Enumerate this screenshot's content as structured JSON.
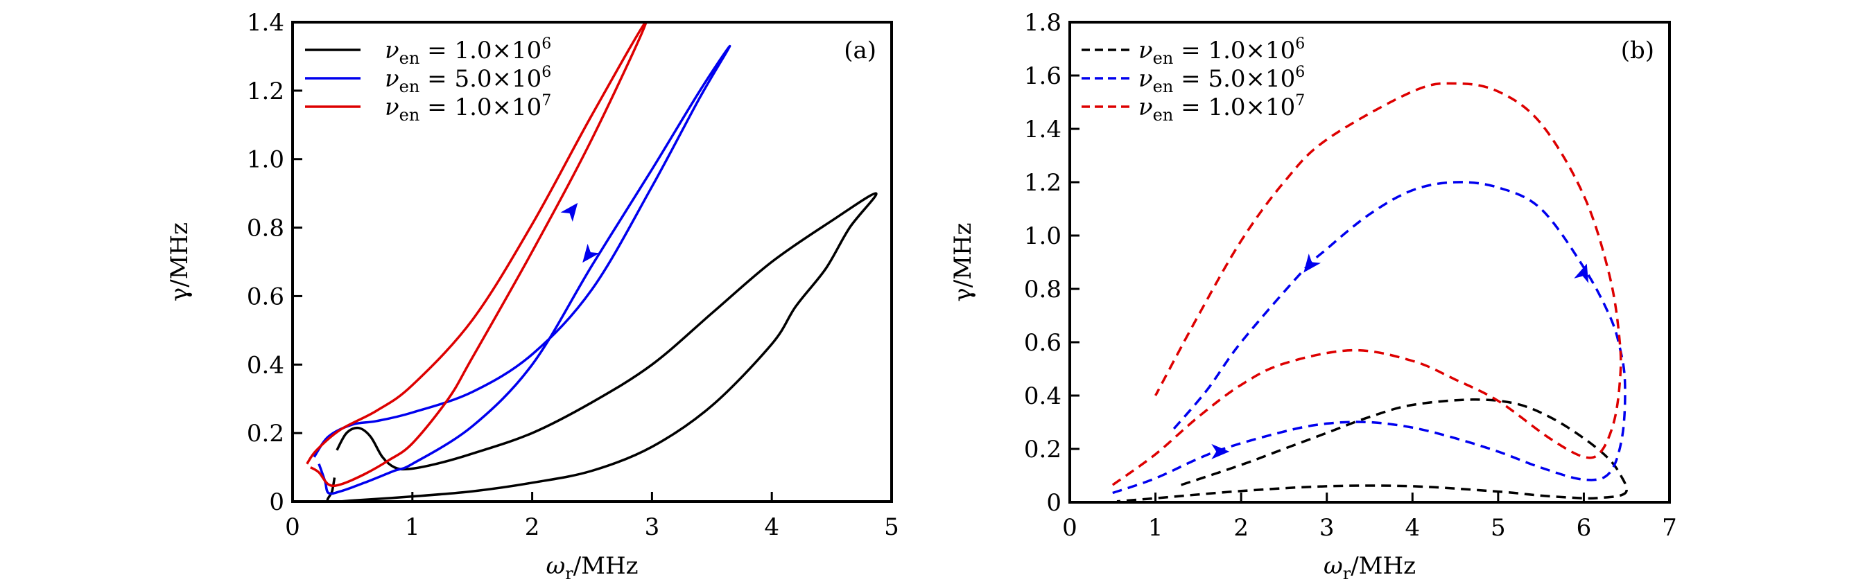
{
  "chart_data": [
    {
      "type": "line",
      "panel_label": "(a)",
      "xlabel": "ωr/MHz",
      "xlabel_main": "ω",
      "xlabel_sub": "r",
      "xlabel_unit": "/MHz",
      "ylabel": "γ/MHz",
      "xlim": [
        0,
        5
      ],
      "ylim": [
        0,
        1.4
      ],
      "xticks": [
        0,
        1,
        2,
        3,
        4,
        5
      ],
      "xtick_labels": [
        "0",
        "1",
        "2",
        "3",
        "4",
        "5"
      ],
      "yticks": [
        0,
        0.2,
        0.4,
        0.6,
        0.8,
        1.0,
        1.2,
        1.4
      ],
      "ytick_labels": [
        "0",
        "0.2",
        "0.4",
        "0.6",
        "0.8",
        "1.0",
        "1.2",
        "1.4"
      ],
      "grid": false,
      "legend_position": "top-left",
      "line_style": "solid",
      "series": [
        {
          "name": "νen = 1.0×10^6",
          "legend_prefix": "ν",
          "legend_sub": "en",
          "legend_mid": " = 1.0×10",
          "legend_exp": "6",
          "color": "#000000",
          "x": [
            0.37,
            0.45,
            0.55,
            0.65,
            0.75,
            0.85,
            0.97,
            1.2,
            1.5,
            2.0,
            2.5,
            3.0,
            3.5,
            4.0,
            4.5,
            4.87,
            4.65,
            4.45,
            4.2,
            4.0,
            3.5,
            3.0,
            2.5,
            2.0,
            1.5,
            1.0,
            0.5,
            0.3,
            0.33,
            0.35
          ],
          "y": [
            0.15,
            0.2,
            0.215,
            0.19,
            0.13,
            0.1,
            0.095,
            0.11,
            0.14,
            0.2,
            0.29,
            0.4,
            0.55,
            0.7,
            0.82,
            0.9,
            0.8,
            0.68,
            0.57,
            0.46,
            0.28,
            0.16,
            0.09,
            0.055,
            0.03,
            0.015,
            0.003,
            0.0,
            0.03,
            0.07
          ]
        },
        {
          "name": "νen = 5.0×10^6",
          "legend_prefix": "ν",
          "legend_sub": "en",
          "legend_mid": " = 5.0×10",
          "legend_exp": "6",
          "color": "#0000ee",
          "x": [
            0.22,
            0.27,
            0.3,
            0.4,
            0.6,
            0.85,
            1.0,
            1.5,
            2.0,
            2.5,
            3.0,
            3.4,
            3.65,
            3.4,
            3.0,
            2.5,
            2.0,
            1.5,
            1.0,
            0.7,
            0.5,
            0.3,
            0.18
          ],
          "y": [
            0.11,
            0.06,
            0.025,
            0.03,
            0.055,
            0.09,
            0.11,
            0.22,
            0.4,
            0.69,
            0.97,
            1.2,
            1.33,
            1.18,
            0.92,
            0.62,
            0.43,
            0.32,
            0.26,
            0.235,
            0.225,
            0.19,
            0.13
          ]
        },
        {
          "name": "νen = 1.0×10^7",
          "legend_prefix": "ν",
          "legend_sub": "en",
          "legend_mid": " = 1.0×10",
          "legend_exp": "7",
          "color": "#dd0000",
          "x": [
            0.15,
            0.22,
            0.3,
            0.4,
            0.6,
            0.8,
            1.0,
            1.3,
            1.5,
            2.0,
            2.5,
            2.95,
            2.5,
            2.0,
            1.5,
            1.0,
            0.7,
            0.4,
            0.2,
            0.12
          ],
          "y": [
            0.1,
            0.085,
            0.05,
            0.05,
            0.08,
            0.12,
            0.17,
            0.3,
            0.42,
            0.73,
            1.06,
            1.4,
            1.13,
            0.81,
            0.53,
            0.34,
            0.265,
            0.21,
            0.15,
            0.11
          ]
        }
      ],
      "arrows": [
        {
          "series": 1,
          "x": 2.33,
          "y": 0.85,
          "direction": "up-right"
        },
        {
          "series": 1,
          "x": 2.47,
          "y": 0.72,
          "direction": "down-left"
        }
      ]
    },
    {
      "type": "line",
      "panel_label": "(b)",
      "xlabel": "ωr/MHz",
      "xlabel_main": "ω",
      "xlabel_sub": "r",
      "xlabel_unit": "/MHz",
      "ylabel": "γ/MHz",
      "xlim": [
        0,
        7
      ],
      "ylim": [
        0,
        1.8
      ],
      "xticks": [
        0,
        1,
        2,
        3,
        4,
        5,
        6,
        7
      ],
      "xtick_labels": [
        "0",
        "1",
        "2",
        "3",
        "4",
        "5",
        "6",
        "7"
      ],
      "yticks": [
        0,
        0.2,
        0.4,
        0.6,
        0.8,
        1.0,
        1.2,
        1.4,
        1.6,
        1.8
      ],
      "ytick_labels": [
        "0",
        "0.2",
        "0.4",
        "0.6",
        "0.8",
        "1.0",
        "1.2",
        "1.4",
        "1.6",
        "1.8"
      ],
      "grid": false,
      "legend_position": "top-left",
      "line_style": "dashed",
      "series": [
        {
          "name": "νen = 1.0×10^6",
          "legend_prefix": "ν",
          "legend_sub": "en",
          "legend_mid": " = 1.0×10",
          "legend_exp": "6",
          "color": "#000000",
          "x": [
            1.3,
            2.0,
            2.5,
            3.0,
            3.5,
            4.0,
            4.7,
            5.2,
            5.6,
            6.0,
            6.3,
            6.45,
            6.5,
            6.42,
            6.2,
            6.0,
            5.5,
            5.0,
            4.0,
            3.0,
            2.0,
            1.0,
            0.55
          ],
          "y": [
            0.065,
            0.14,
            0.2,
            0.26,
            0.32,
            0.365,
            0.385,
            0.37,
            0.32,
            0.24,
            0.16,
            0.09,
            0.045,
            0.025,
            0.017,
            0.015,
            0.025,
            0.04,
            0.06,
            0.06,
            0.042,
            0.015,
            0.003
          ]
        },
        {
          "name": "νen = 5.0×10^6",
          "legend_prefix": "ν",
          "legend_sub": "en",
          "legend_mid": " = 5.0×10",
          "legend_exp": "6",
          "color": "#0000ee",
          "x": [
            0.5,
            1.0,
            1.7,
            2.5,
            3.0,
            3.5,
            4.0,
            4.5,
            5.0,
            5.5,
            6.0,
            6.3,
            6.45,
            6.48,
            6.42,
            6.3,
            6.0,
            5.5,
            5.0,
            4.5,
            4.0,
            3.5,
            3.0,
            2.7,
            2.0,
            1.6,
            1.2
          ],
          "y": [
            0.035,
            0.09,
            0.19,
            0.265,
            0.295,
            0.3,
            0.28,
            0.24,
            0.19,
            0.13,
            0.085,
            0.11,
            0.25,
            0.45,
            0.58,
            0.7,
            0.88,
            1.1,
            1.18,
            1.2,
            1.17,
            1.08,
            0.95,
            0.86,
            0.6,
            0.42,
            0.27
          ]
        },
        {
          "name": "νen = 1.0×10^7",
          "legend_prefix": "ν",
          "legend_sub": "en",
          "legend_mid": " = 1.0×10",
          "legend_exp": "7",
          "color": "#dd0000",
          "x": [
            0.5,
            1.0,
            1.5,
            2.0,
            2.5,
            3.3,
            4.0,
            4.5,
            5.0,
            5.6,
            6.0,
            6.2,
            6.35,
            6.42,
            6.42,
            6.3,
            6.0,
            5.5,
            5.0,
            4.5,
            4.0,
            3.0,
            2.5,
            2.0,
            1.5,
            1.0
          ],
          "y": [
            0.065,
            0.18,
            0.32,
            0.44,
            0.52,
            0.57,
            0.53,
            0.46,
            0.38,
            0.24,
            0.17,
            0.19,
            0.3,
            0.45,
            0.6,
            0.85,
            1.15,
            1.42,
            1.54,
            1.57,
            1.54,
            1.36,
            1.2,
            0.98,
            0.7,
            0.4
          ]
        }
      ],
      "arrows": [
        {
          "series": 1,
          "x": 1.75,
          "y": 0.19,
          "direction": "right"
        },
        {
          "series": 1,
          "x": 2.8,
          "y": 0.89,
          "direction": "down-left"
        },
        {
          "series": 1,
          "x": 6.0,
          "y": 0.86,
          "direction": "up"
        }
      ]
    }
  ]
}
